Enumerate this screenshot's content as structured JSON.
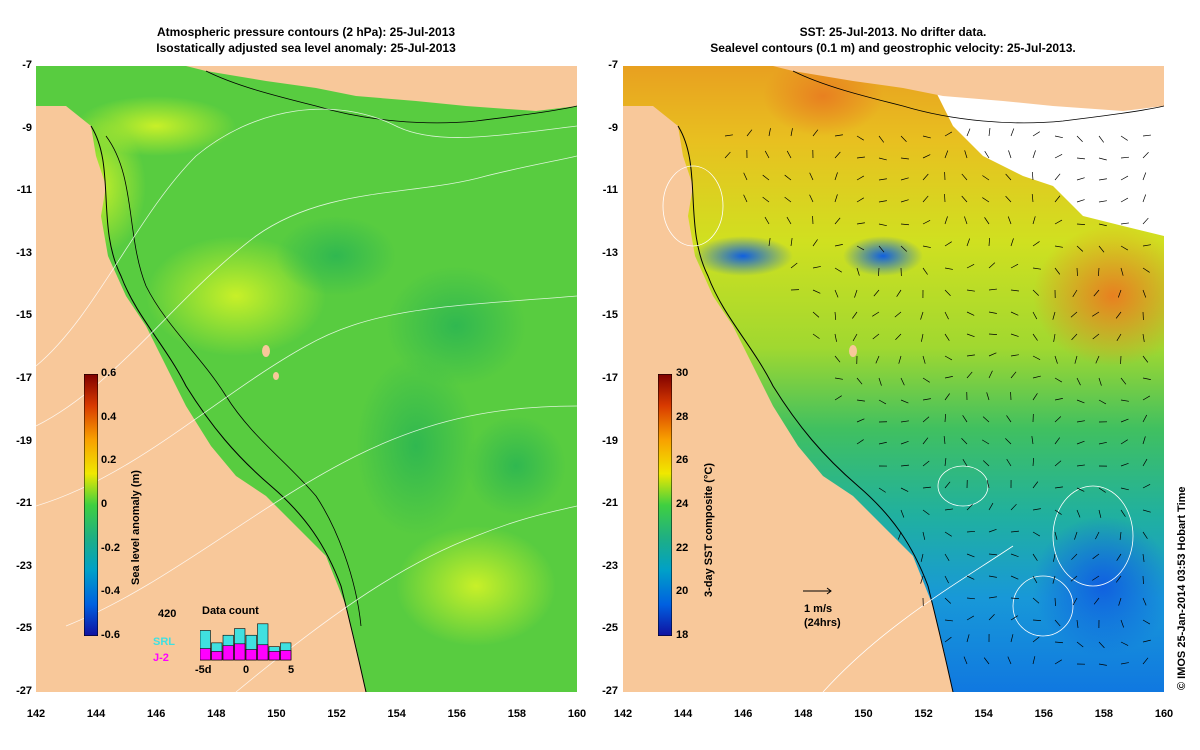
{
  "left_panel": {
    "title_line1": "Atmospheric pressure contours (2 hPa): 25-Jul-2013",
    "title_line2": "Isostatically adjusted sea level anomaly: 25-Jul-2013",
    "colorbar": {
      "label": "Sea level anomaly (m)",
      "ticks": [
        "0.6",
        "0.4",
        "0.2",
        "0",
        "-0.2",
        "-0.4",
        "-0.6"
      ],
      "colors": [
        "#7f0000",
        "#d83a00",
        "#f8a000",
        "#f0e800",
        "#a8e830",
        "#40d040",
        "#20b080",
        "#00a0c8",
        "#0060e0",
        "#1010a0"
      ]
    },
    "inset": {
      "title": "Data count",
      "max_label": "420",
      "series_a": "SRL",
      "series_b": "J-2",
      "x_ticks": [
        "-5d",
        "0",
        "5"
      ],
      "srl_color": "#40e0e0",
      "j2_color": "#ff00ff",
      "srl_counts": [
        310,
        180,
        260,
        330,
        260,
        380,
        140,
        180
      ],
      "j2_counts": [
        120,
        90,
        150,
        170,
        110,
        160,
        90,
        100
      ]
    }
  },
  "right_panel": {
    "title_line1": "SST: 25-Jul-2013. No drifter data.",
    "title_line2": "Sealevel contours (0.1 m) and geostrophic velocity: 25-Jul-2013.",
    "colorbar": {
      "label": "3-day SST composite (°C)",
      "ticks": [
        "30",
        "28",
        "26",
        "24",
        "22",
        "20",
        "18"
      ],
      "colors": [
        "#7f0000",
        "#d83a00",
        "#f8a000",
        "#f0e800",
        "#a8e830",
        "#40d040",
        "#20b080",
        "#00a0c8",
        "#0060e0",
        "#1010a0"
      ]
    },
    "scale_arrow_label": "1 m/s",
    "scale_arrow_sub": "(24hrs)"
  },
  "axes": {
    "lat_ticks": [
      "-7",
      "-9",
      "-11",
      "-13",
      "-15",
      "-17",
      "-19",
      "-21",
      "-23",
      "-25",
      "-27"
    ],
    "lon_ticks": [
      "142",
      "144",
      "146",
      "148",
      "150",
      "152",
      "154",
      "156",
      "158",
      "160"
    ]
  },
  "credit": "© IMOS 25-Jan-2014 03:53 Hobart Time",
  "colors": {
    "land": "#f8c89a",
    "ocean_green": "#5cd040",
    "ocean_light": "#a8e830",
    "ocean_blue": "#20b0c0",
    "sst_orange": "#f0a020",
    "sst_yellow": "#e8e020",
    "sst_blue": "#1890e8"
  }
}
